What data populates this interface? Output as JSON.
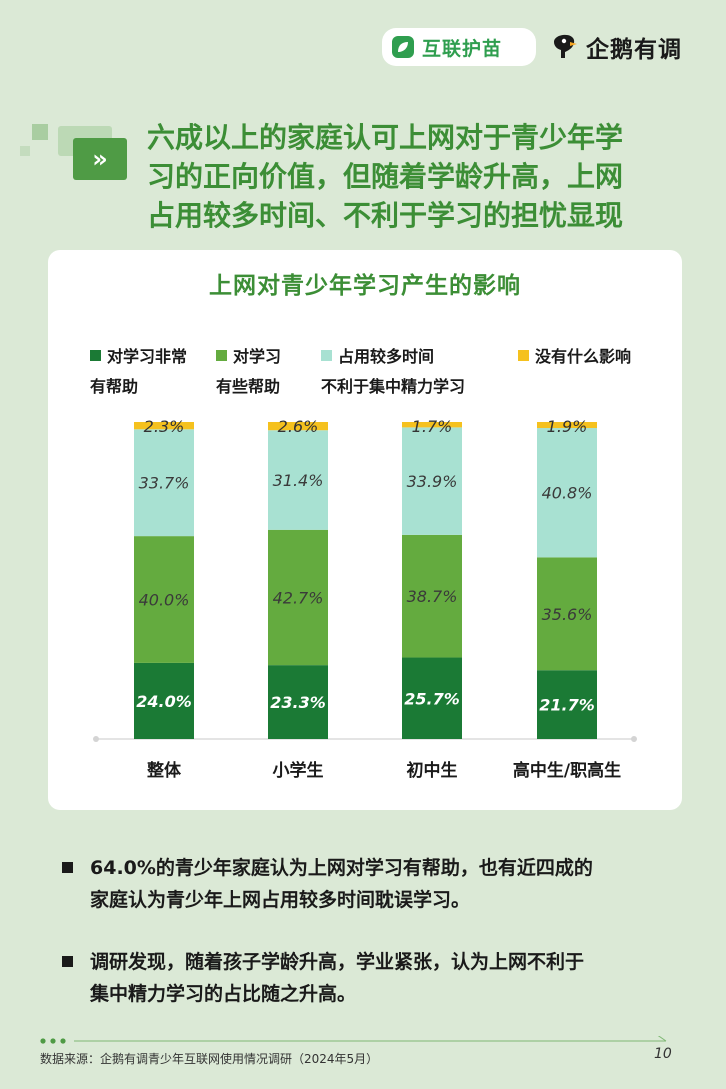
{
  "brand": {
    "logo1": "互联护苗",
    "logo2": "企鹅有调"
  },
  "headline": [
    "六成以上的家庭认可上网对于青少年学",
    "习的正向价值，但随着学龄升高，上网",
    "占用较多时间、不利于学习的担忧显现"
  ],
  "chart_data": {
    "type": "bar",
    "stacked": true,
    "percent_stacked": true,
    "title": "上网对青少年学习产生的影响",
    "categories": [
      "整体",
      "小学生",
      "初中生",
      "高中生/职高生"
    ],
    "series": [
      {
        "name_lines": [
          "对学习非常",
          "有帮助"
        ],
        "name": "对学习非常有帮助",
        "color": "#1b7a35",
        "values": [
          24.0,
          23.3,
          25.7,
          21.7
        ],
        "labels": [
          "24.0%",
          "23.3%",
          "25.7%",
          "21.7%"
        ]
      },
      {
        "name_lines": [
          "对学习",
          "有些帮助"
        ],
        "name": "对学习有些帮助",
        "color": "#64ab3f",
        "values": [
          40.0,
          42.7,
          38.7,
          35.6
        ],
        "labels": [
          "40.0%",
          "42.7%",
          "38.7%",
          "35.6%"
        ]
      },
      {
        "name_lines": [
          "占用较多时间",
          "不利于集中精力学习"
        ],
        "name": "占用较多时间不利于集中精力学习",
        "color": "#a8e1d2",
        "values": [
          33.7,
          31.4,
          33.9,
          40.8
        ],
        "labels": [
          "33.7%",
          "31.4%",
          "33.9%",
          "40.8%"
        ]
      },
      {
        "name_lines": [
          "没有什么影响"
        ],
        "name": "没有什么影响",
        "color": "#f5c11e",
        "values": [
          2.3,
          2.6,
          1.7,
          1.9
        ],
        "labels": [
          "2.3%",
          "2.6%",
          "1.7%",
          "1.9%"
        ]
      }
    ],
    "ylim": [
      0,
      100
    ],
    "legend": "top"
  },
  "bullets": [
    [
      "64.0%的青少年家庭认为上网对学习有帮助，也有近四成的",
      "家庭认为青少年上网占用较多时间耽误学习。"
    ],
    [
      "调研发现，随着孩子学龄升高，学业紧张，认为上网不利于",
      "集中精力学习的占比随之升高。"
    ]
  ],
  "footer": {
    "source": "数据来源：企鹅有调青少年互联网使用情况调研（2024年5月）",
    "page": "10"
  }
}
